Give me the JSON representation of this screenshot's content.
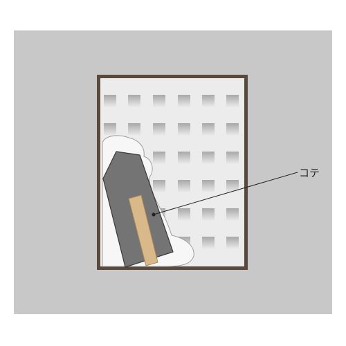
{
  "diagram": {
    "callout_label": "コテ",
    "colors": {
      "background": "#c8c8c8",
      "frame": "#5a4a3e",
      "wall": "#ececec",
      "perforation_dark": "#a8a8a8",
      "plaster": "#f7f7f7",
      "trowel_blade": "#747474",
      "trowel_handle": "#d9b98a",
      "leader_line": "#222222"
    }
  }
}
